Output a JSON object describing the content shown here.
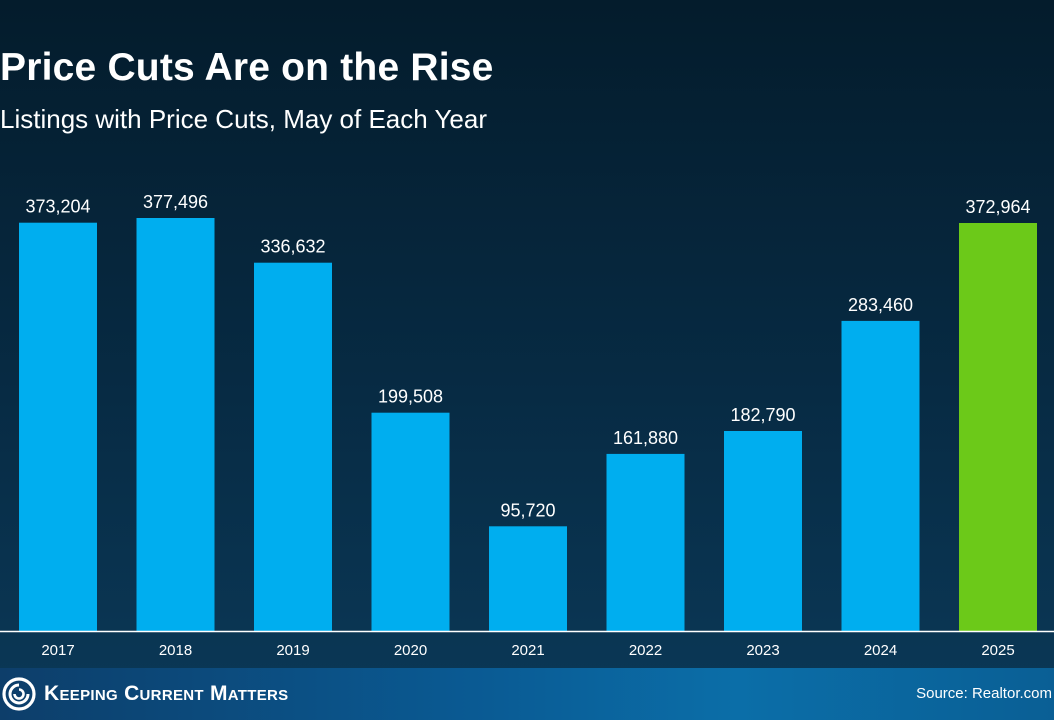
{
  "header": {
    "title": "Price Cuts Are on the Rise",
    "subtitle": "Listings with Price Cuts, May of Each Year"
  },
  "footer": {
    "brand": "Keeping Current Matters",
    "source": "Source: Realtor.com"
  },
  "colors": {
    "bar": "#00aeef",
    "highlight_bar": "#6cc919",
    "background": "#041c2c",
    "axis": "#ffffff"
  },
  "chart_data": {
    "type": "bar",
    "title": "Price Cuts Are on the Rise",
    "subtitle": "Listings with Price Cuts, May of Each Year",
    "categories": [
      "2017",
      "2018",
      "2019",
      "2020",
      "2021",
      "2022",
      "2023",
      "2024",
      "2025"
    ],
    "values": [
      373204,
      377496,
      336632,
      199508,
      95720,
      161880,
      182790,
      283460,
      372964
    ],
    "value_labels": [
      "373,204",
      "377,496",
      "336,632",
      "199,508",
      "95,720",
      "161,880",
      "182,790",
      "283,460",
      "372,964"
    ],
    "highlight_category": "2025",
    "xlabel": "",
    "ylabel": "",
    "ylim": [
      0,
      377496
    ],
    "grid": false,
    "legend": "none"
  }
}
